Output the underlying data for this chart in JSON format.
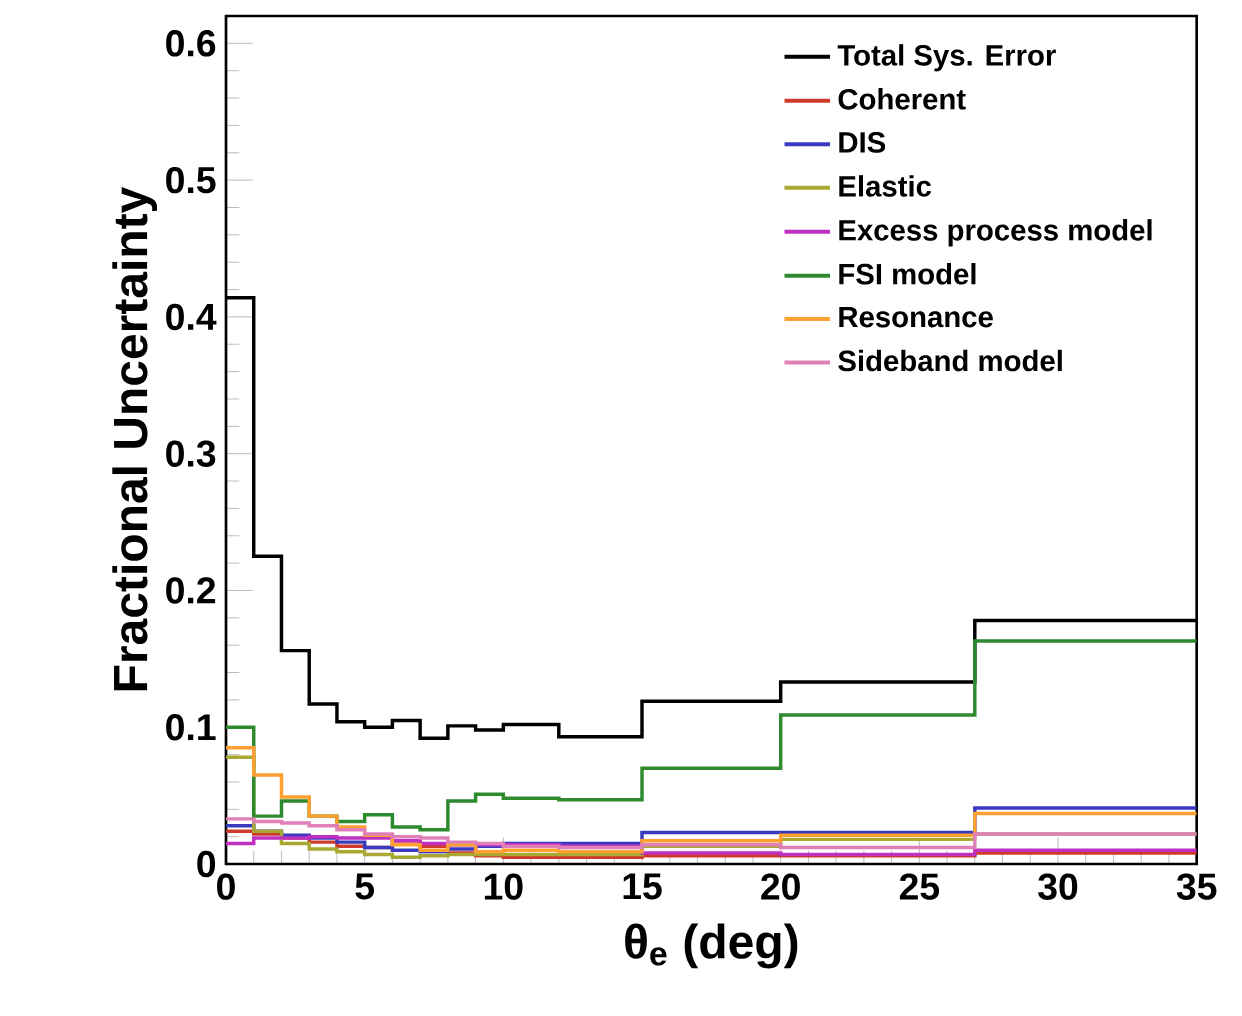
{
  "chart_data": {
    "type": "histogram",
    "xlabel": "θ$_{e}$ (deg)",
    "ylabel": "Fractional Uncertainty",
    "bins": [
      0,
      1,
      2,
      3,
      4,
      5,
      6,
      7,
      8,
      9,
      10,
      12,
      15,
      20,
      27,
      35
    ],
    "series": [
      {
        "name": "Total Sys. Error",
        "color": "#000000",
        "values": [
          0.414,
          0.225,
          0.156,
          0.117,
          0.104,
          0.1,
          0.105,
          0.092,
          0.101,
          0.098,
          0.102,
          0.093,
          0.119,
          0.133,
          0.178
        ]
      },
      {
        "name": "Coherent",
        "color": "#d03a2a",
        "values": [
          0.024,
          0.022,
          0.019,
          0.016,
          0.013,
          0.012,
          0.017,
          0.013,
          0.008,
          0.006,
          0.005,
          0.005,
          0.006,
          0.006,
          0.008
        ]
      },
      {
        "name": "DIS",
        "color": "#3a3ac0",
        "values": [
          0.028,
          0.024,
          0.021,
          0.019,
          0.016,
          0.012,
          0.01,
          0.009,
          0.011,
          0.013,
          0.015,
          0.015,
          0.023,
          0.023,
          0.041
        ]
      },
      {
        "name": "Elastic",
        "color": "#a8a832",
        "values": [
          0.078,
          0.024,
          0.015,
          0.011,
          0.009,
          0.007,
          0.005,
          0.006,
          0.007,
          0.007,
          0.007,
          0.007,
          0.013,
          0.018,
          0.022
        ]
      },
      {
        "name": "Excess process model",
        "color": "#c030c0",
        "values": [
          0.015,
          0.019,
          0.019,
          0.02,
          0.019,
          0.019,
          0.017,
          0.015,
          0.014,
          0.014,
          0.014,
          0.013,
          0.008,
          0.007,
          0.01
        ]
      },
      {
        "name": "FSI model",
        "color": "#2e8a2e",
        "values": [
          0.1,
          0.035,
          0.046,
          0.035,
          0.031,
          0.036,
          0.027,
          0.025,
          0.046,
          0.051,
          0.048,
          0.047,
          0.07,
          0.109,
          0.163
        ]
      },
      {
        "name": "Resonance",
        "color": "#ffa030",
        "values": [
          0.085,
          0.065,
          0.049,
          0.035,
          0.027,
          0.021,
          0.014,
          0.01,
          0.014,
          0.009,
          0.01,
          0.009,
          0.017,
          0.021,
          0.037
        ]
      },
      {
        "name": "Sideband model",
        "color": "#e080b8",
        "values": [
          0.033,
          0.031,
          0.03,
          0.028,
          0.025,
          0.022,
          0.02,
          0.019,
          0.016,
          0.015,
          0.013,
          0.012,
          0.014,
          0.012,
          0.022
        ]
      }
    ],
    "xlim": [
      0,
      35
    ],
    "ylim": [
      0,
      0.62
    ],
    "xticks": [
      0,
      5,
      10,
      15,
      20,
      25,
      30,
      35
    ],
    "yticks": [
      0,
      0.1,
      0.2,
      0.3,
      0.4,
      0.5,
      0.6
    ],
    "legend": "top right",
    "grid": false
  }
}
